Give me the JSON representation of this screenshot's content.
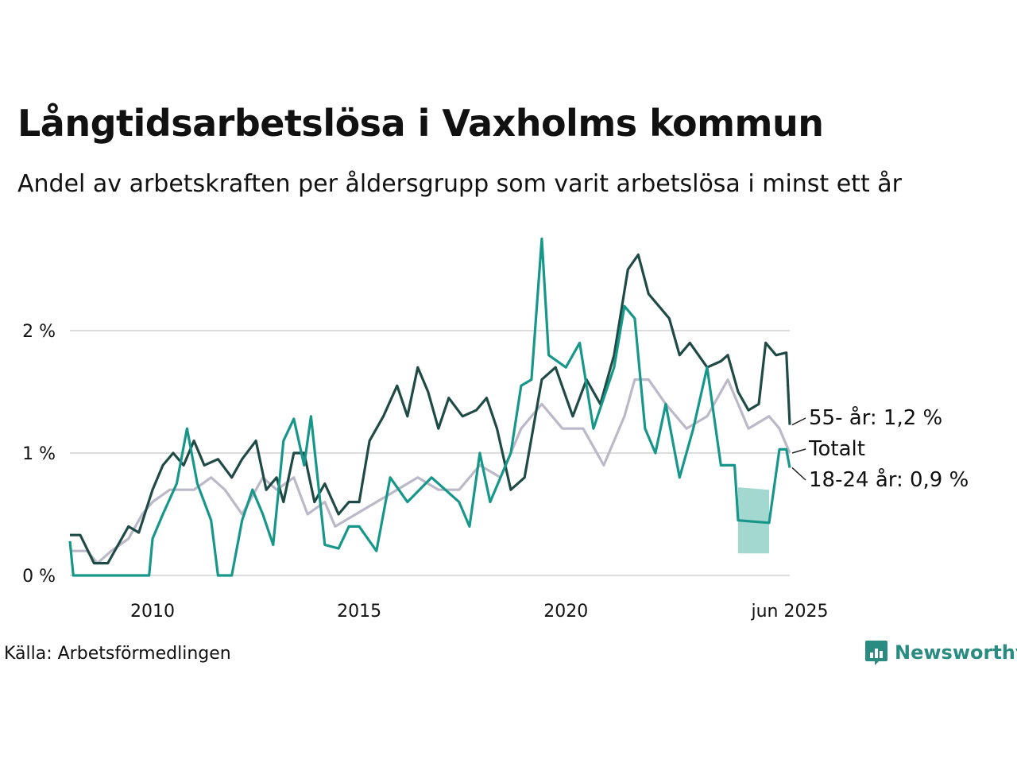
{
  "header": {
    "title": "Långtidsarbetslösa i Vaxholms kommun",
    "subtitle": "Andel av arbetskraften per åldersgrupp som varit arbetslösa i minst ett år"
  },
  "footer": {
    "source": "Källa: Arbetsförmedlingen",
    "brand": "Newsworthy"
  },
  "colors": {
    "older": "#1f4a45",
    "young": "#17968a",
    "total": "#bbb8c8",
    "band": "#a2d8d0",
    "grid": "#dddddd",
    "brand": "#2a8c80"
  },
  "chart_data": {
    "type": "line",
    "xlim": [
      "2008-01",
      "2025-06"
    ],
    "ylim": [
      0,
      2.7
    ],
    "y_ticks": [
      0,
      1,
      2
    ],
    "y_tick_labels": [
      "0 %",
      "1 %",
      "2 %"
    ],
    "x_ticks": [
      "2010-01",
      "2015-01",
      "2020-01",
      "2025-06"
    ],
    "x_tick_labels": [
      "2010",
      "2015",
      "2020",
      "jun 2025"
    ],
    "grid": true,
    "series": [
      {
        "key": "total",
        "label": "Totalt",
        "color": "#bbb8c8",
        "points": [
          [
            "2008-01",
            0.2
          ],
          [
            "2008-06",
            0.2
          ],
          [
            "2008-09",
            0.1
          ],
          [
            "2009-01",
            0.2
          ],
          [
            "2009-06",
            0.3
          ],
          [
            "2009-10",
            0.5
          ],
          [
            "2010-01",
            0.6
          ],
          [
            "2010-06",
            0.7
          ],
          [
            "2011-01",
            0.7
          ],
          [
            "2011-06",
            0.8
          ],
          [
            "2011-10",
            0.7
          ],
          [
            "2012-03",
            0.5
          ],
          [
            "2012-09",
            0.8
          ],
          [
            "2013-01",
            0.7
          ],
          [
            "2013-06",
            0.8
          ],
          [
            "2013-10",
            0.5
          ],
          [
            "2014-03",
            0.6
          ],
          [
            "2014-06",
            0.4
          ],
          [
            "2014-12",
            0.5
          ],
          [
            "2015-06",
            0.6
          ],
          [
            "2015-12",
            0.7
          ],
          [
            "2016-06",
            0.8
          ],
          [
            "2016-12",
            0.7
          ],
          [
            "2017-06",
            0.7
          ],
          [
            "2017-12",
            0.9
          ],
          [
            "2018-06",
            0.8
          ],
          [
            "2018-12",
            1.2
          ],
          [
            "2019-06",
            1.4
          ],
          [
            "2019-12",
            1.2
          ],
          [
            "2020-06",
            1.2
          ],
          [
            "2020-12",
            0.9
          ],
          [
            "2021-06",
            1.3
          ],
          [
            "2021-09",
            1.6
          ],
          [
            "2022-01",
            1.6
          ],
          [
            "2022-06",
            1.4
          ],
          [
            "2022-12",
            1.2
          ],
          [
            "2023-06",
            1.3
          ],
          [
            "2023-12",
            1.6
          ],
          [
            "2024-03",
            1.4
          ],
          [
            "2024-06",
            1.2
          ],
          [
            "2024-12",
            1.3
          ],
          [
            "2025-03",
            1.2
          ],
          [
            "2025-06",
            1.0
          ]
        ]
      },
      {
        "key": "older",
        "label": "55- år: 1,2 %",
        "color": "#1f4a45",
        "points": [
          [
            "2008-01",
            0.33
          ],
          [
            "2008-04",
            0.33
          ],
          [
            "2008-08",
            0.1
          ],
          [
            "2008-12",
            0.1
          ],
          [
            "2009-03",
            0.25
          ],
          [
            "2009-06",
            0.4
          ],
          [
            "2009-09",
            0.35
          ],
          [
            "2010-01",
            0.7
          ],
          [
            "2010-04",
            0.9
          ],
          [
            "2010-07",
            1.0
          ],
          [
            "2010-10",
            0.9
          ],
          [
            "2011-01",
            1.1
          ],
          [
            "2011-04",
            0.9
          ],
          [
            "2011-08",
            0.95
          ],
          [
            "2011-12",
            0.8
          ],
          [
            "2012-03",
            0.95
          ],
          [
            "2012-07",
            1.1
          ],
          [
            "2012-10",
            0.7
          ],
          [
            "2013-01",
            0.8
          ],
          [
            "2013-03",
            0.6
          ],
          [
            "2013-06",
            1.0
          ],
          [
            "2013-09",
            1.0
          ],
          [
            "2013-12",
            0.6
          ],
          [
            "2014-03",
            0.75
          ],
          [
            "2014-07",
            0.5
          ],
          [
            "2014-10",
            0.6
          ],
          [
            "2015-01",
            0.6
          ],
          [
            "2015-04",
            1.1
          ],
          [
            "2015-08",
            1.3
          ],
          [
            "2015-12",
            1.55
          ],
          [
            "2016-03",
            1.3
          ],
          [
            "2016-06",
            1.7
          ],
          [
            "2016-09",
            1.5
          ],
          [
            "2016-12",
            1.2
          ],
          [
            "2017-03",
            1.45
          ],
          [
            "2017-07",
            1.3
          ],
          [
            "2017-11",
            1.35
          ],
          [
            "2018-02",
            1.45
          ],
          [
            "2018-05",
            1.2
          ],
          [
            "2018-09",
            0.7
          ],
          [
            "2019-01",
            0.8
          ],
          [
            "2019-06",
            1.6
          ],
          [
            "2019-10",
            1.7
          ],
          [
            "2020-03",
            1.3
          ],
          [
            "2020-07",
            1.6
          ],
          [
            "2020-11",
            1.4
          ],
          [
            "2021-03",
            1.8
          ],
          [
            "2021-07",
            2.5
          ],
          [
            "2021-10",
            2.62
          ],
          [
            "2022-01",
            2.3
          ],
          [
            "2022-04",
            2.2
          ],
          [
            "2022-07",
            2.1
          ],
          [
            "2022-10",
            1.8
          ],
          [
            "2023-01",
            1.9
          ],
          [
            "2023-06",
            1.7
          ],
          [
            "2023-10",
            1.75
          ],
          [
            "2023-12",
            1.8
          ],
          [
            "2024-03",
            1.5
          ],
          [
            "2024-06",
            1.35
          ],
          [
            "2024-09",
            1.4
          ],
          [
            "2024-11",
            1.9
          ],
          [
            "2025-02",
            1.8
          ],
          [
            "2025-05",
            1.82
          ],
          [
            "2025-06",
            1.23
          ]
        ]
      },
      {
        "key": "young",
        "label": "18-24 år: 0,9 %",
        "color": "#17968a",
        "points": [
          [
            "2008-01",
            0.28
          ],
          [
            "2008-02",
            0.0
          ],
          [
            "2009-12",
            0.0
          ],
          [
            "2010-01",
            0.3
          ],
          [
            "2010-04",
            0.5
          ],
          [
            "2010-08",
            0.75
          ],
          [
            "2010-11",
            1.2
          ],
          [
            "2011-02",
            0.75
          ],
          [
            "2011-06",
            0.45
          ],
          [
            "2011-08",
            0.0
          ],
          [
            "2011-12",
            0.0
          ],
          [
            "2012-03",
            0.45
          ],
          [
            "2012-06",
            0.7
          ],
          [
            "2012-09",
            0.5
          ],
          [
            "2012-12",
            0.25
          ],
          [
            "2013-03",
            1.1
          ],
          [
            "2013-06",
            1.28
          ],
          [
            "2013-09",
            0.9
          ],
          [
            "2013-11",
            1.3
          ],
          [
            "2014-03",
            0.25
          ],
          [
            "2014-07",
            0.22
          ],
          [
            "2014-10",
            0.4
          ],
          [
            "2015-01",
            0.4
          ],
          [
            "2015-06",
            0.2
          ],
          [
            "2015-10",
            0.8
          ],
          [
            "2016-03",
            0.6
          ],
          [
            "2016-10",
            0.8
          ],
          [
            "2017-06",
            0.6
          ],
          [
            "2017-09",
            0.4
          ],
          [
            "2017-12",
            1.0
          ],
          [
            "2018-03",
            0.6
          ],
          [
            "2018-09",
            1.0
          ],
          [
            "2018-12",
            1.55
          ],
          [
            "2019-03",
            1.6
          ],
          [
            "2019-06",
            2.75
          ],
          [
            "2019-08",
            1.8
          ],
          [
            "2020-01",
            1.7
          ],
          [
            "2020-05",
            1.9
          ],
          [
            "2020-09",
            1.2
          ],
          [
            "2021-03",
            1.7
          ],
          [
            "2021-06",
            2.2
          ],
          [
            "2021-09",
            2.1
          ],
          [
            "2021-12",
            1.2
          ],
          [
            "2022-03",
            1.0
          ],
          [
            "2022-06",
            1.4
          ],
          [
            "2022-10",
            0.8
          ],
          [
            "2023-02",
            1.2
          ],
          [
            "2023-06",
            1.7
          ],
          [
            "2023-10",
            0.9
          ],
          [
            "2024-02",
            0.9
          ],
          [
            "2024-03",
            0.45
          ],
          [
            "2024-12",
            0.43
          ],
          [
            "2025-03",
            1.03
          ],
          [
            "2025-05",
            1.03
          ],
          [
            "2025-06",
            0.88
          ]
        ]
      }
    ],
    "uncertainty_band": {
      "series": "young",
      "from": "2024-03",
      "to": "2024-12",
      "lower": [
        0.18,
        0.18
      ],
      "upper": [
        0.72,
        0.7
      ]
    }
  }
}
